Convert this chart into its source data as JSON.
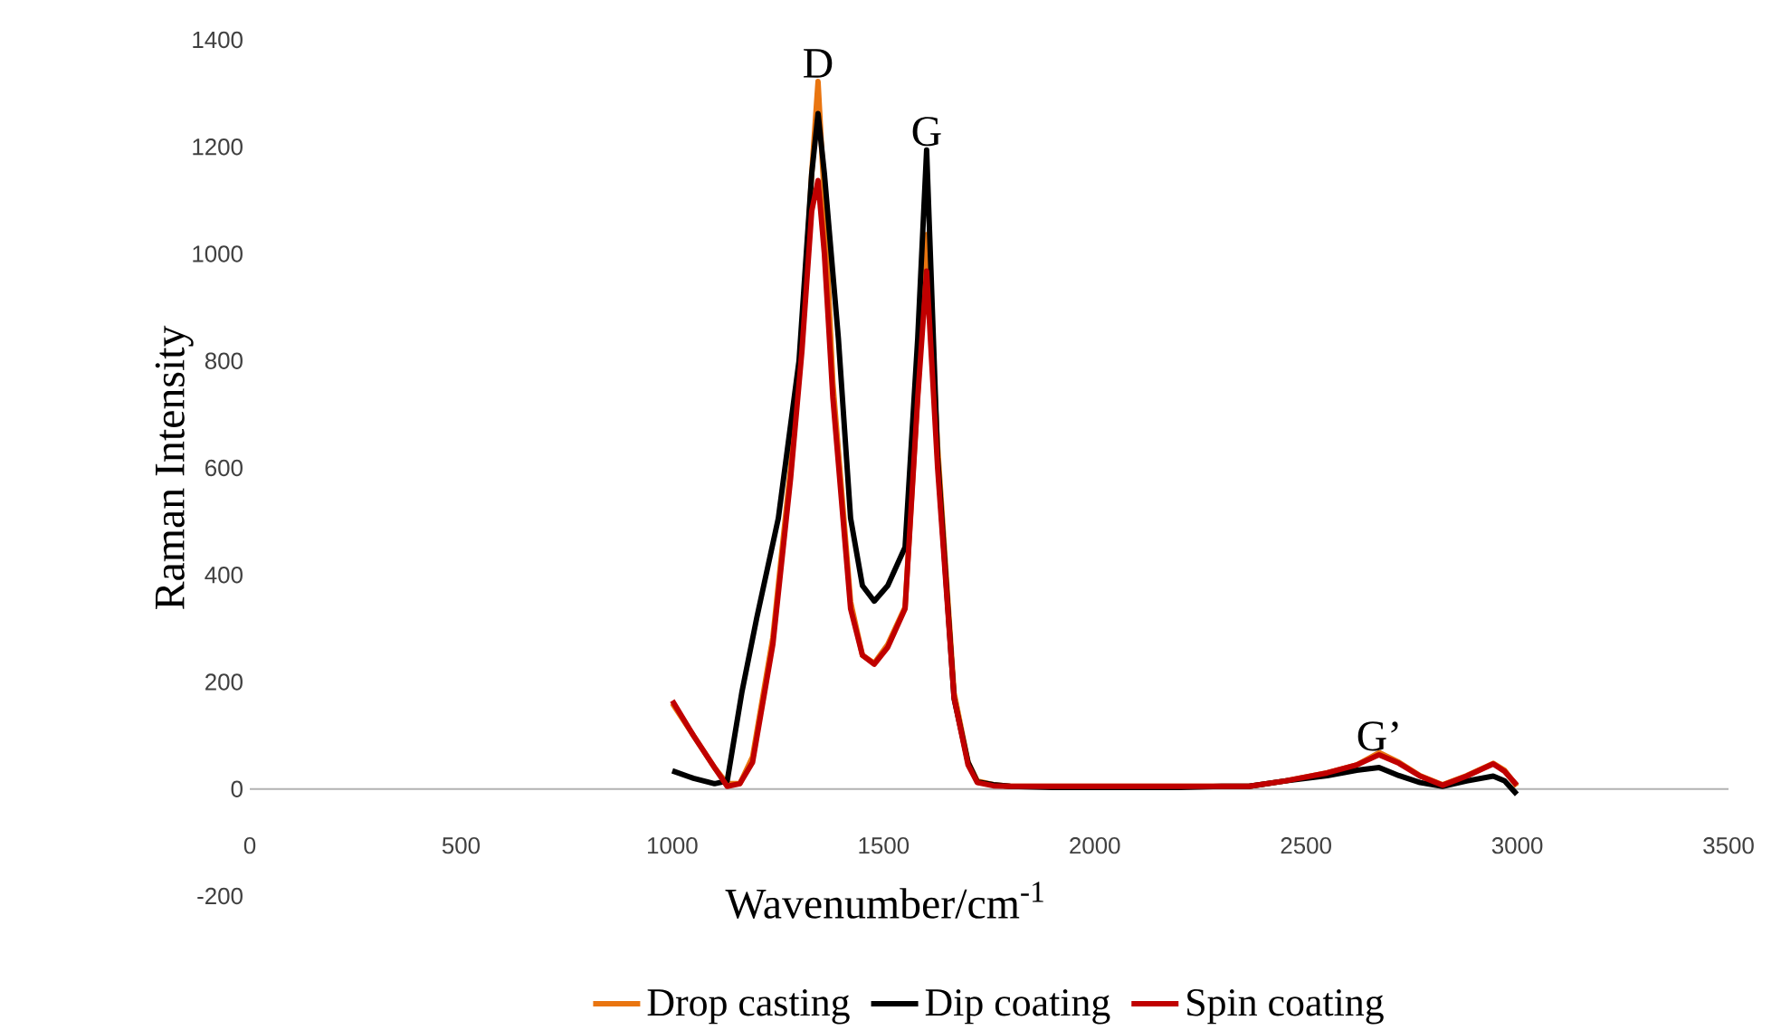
{
  "chart_data": {
    "type": "line",
    "xlabel": "Wavenumber/cm$^{-1}$",
    "ylabel": "Raman Intensity",
    "xlim": [
      0,
      3500
    ],
    "xticks": [
      0,
      500,
      1000,
      1500,
      2000,
      2500,
      3000,
      3500
    ],
    "ylim": [
      -200,
      1400
    ],
    "yticks": [
      -200,
      0,
      200,
      400,
      600,
      800,
      1000,
      1200,
      1400
    ],
    "legend": "bottom",
    "marker": "none",
    "line_style": "solid",
    "annotations": [
      {
        "text": "D",
        "x": 1345,
        "y": 1322
      },
      {
        "text": "G",
        "x": 1602,
        "y": 1194
      },
      {
        "text": "G’",
        "x": 2673,
        "y": 64
      }
    ],
    "series": [
      {
        "name": "Drop casting",
        "color": "#e97510",
        "x": [
          1000,
          1050,
          1100,
          1130,
          1160,
          1190,
          1238,
          1280,
          1307,
          1330,
          1345,
          1360,
          1380,
          1422,
          1450,
          1478,
          1510,
          1551,
          1581,
          1602,
          1628,
          1667,
          1700,
          1722,
          1760,
          1800,
          1900,
          2000,
          2100,
          2200,
          2300,
          2365,
          2450,
          2550,
          2620,
          2673,
          2720,
          2770,
          2823,
          2880,
          2943,
          2970,
          2999
        ],
        "values": [
          160,
          100,
          40,
          10,
          10,
          60,
          283,
          600,
          843,
          1150,
          1322,
          1100,
          760,
          350,
          250,
          235,
          270,
          340,
          740,
          1036,
          640,
          180,
          50,
          15,
          8,
          5,
          5,
          5,
          5,
          5,
          5,
          5,
          15,
          30,
          45,
          68,
          50,
          25,
          8,
          25,
          48,
          35,
          5
        ]
      },
      {
        "name": "Dip coating",
        "color": "#000000",
        "x": [
          1000,
          1050,
          1100,
          1130,
          1165,
          1200,
          1251,
          1300,
          1330,
          1345,
          1360,
          1393,
          1422,
          1450,
          1478,
          1510,
          1551,
          1581,
          1602,
          1628,
          1667,
          1700,
          1722,
          1760,
          1800,
          1900,
          2000,
          2100,
          2200,
          2300,
          2365,
          2450,
          2550,
          2620,
          2673,
          2720,
          2770,
          2823,
          2880,
          2943,
          2970,
          2999
        ],
        "values": [
          34,
          20,
          10,
          15,
          182,
          320,
          506,
          800,
          1150,
          1262,
          1150,
          843,
          506,
          380,
          351,
          380,
          452,
          843,
          1194,
          620,
          169,
          50,
          13,
          8,
          5,
          3,
          3,
          3,
          3,
          5,
          5,
          15,
          25,
          35,
          40,
          25,
          12,
          5,
          15,
          24,
          15,
          -10
        ]
      },
      {
        "name": "Spin coating",
        "color": "#c00000",
        "x": [
          1000,
          1050,
          1100,
          1130,
          1160,
          1190,
          1238,
          1280,
          1307,
          1330,
          1345,
          1360,
          1380,
          1422,
          1450,
          1478,
          1510,
          1551,
          1581,
          1602,
          1628,
          1667,
          1700,
          1722,
          1760,
          1800,
          1900,
          2000,
          2100,
          2200,
          2300,
          2365,
          2450,
          2550,
          2620,
          2673,
          2720,
          2770,
          2823,
          2880,
          2943,
          2970,
          2999
        ],
        "values": [
          165,
          100,
          40,
          5,
          10,
          50,
          270,
          580,
          820,
          1080,
          1137,
          1000,
          732,
          337,
          250,
          233,
          265,
          337,
          732,
          968,
          600,
          170,
          45,
          12,
          6,
          5,
          5,
          5,
          5,
          5,
          5,
          5,
          15,
          30,
          45,
          64,
          48,
          24,
          7,
          24,
          47,
          33,
          7
        ]
      }
    ]
  }
}
